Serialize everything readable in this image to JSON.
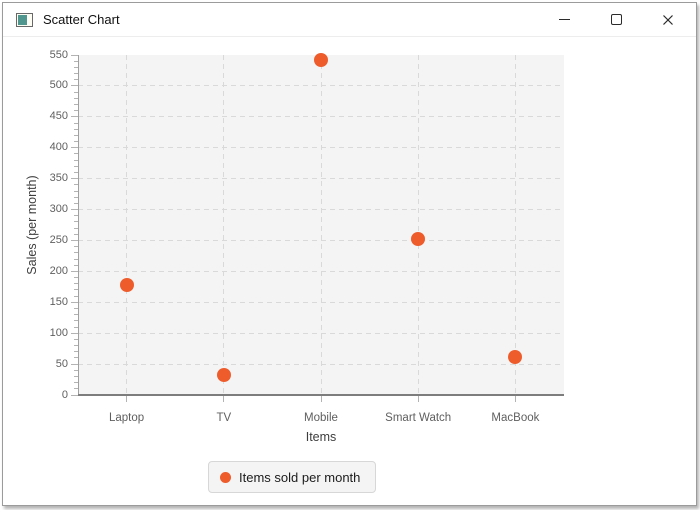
{
  "window": {
    "title": "Scatter Chart",
    "icon": "app-icon",
    "controls": [
      "minimize",
      "maximize",
      "close"
    ]
  },
  "chart_data": {
    "type": "scatter",
    "title": "",
    "xlabel": "Items",
    "ylabel": "Sales (per month)",
    "categories": [
      "Laptop",
      "TV",
      "Mobile",
      "Smart Watch",
      "MacBook"
    ],
    "series": [
      {
        "name": "Items sold per month",
        "color": "#ee5c2c",
        "values": [
          178,
          32,
          542,
          252,
          62
        ]
      }
    ],
    "ylim": [
      0,
      550
    ],
    "yticks": [
      0,
      50,
      100,
      150,
      200,
      250,
      300,
      350,
      400,
      450,
      500,
      550
    ],
    "minor_ticks_per_interval": 4,
    "grid": "dashed",
    "plot_background": "#f4f4f4",
    "legend_position": "bottom"
  }
}
